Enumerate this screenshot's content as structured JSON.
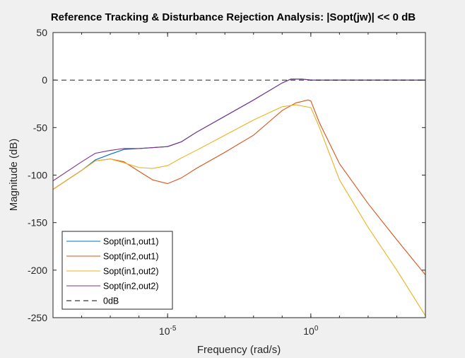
{
  "chart_data": {
    "type": "line",
    "title": "Reference Tracking & Disturbance Rejection Analysis: |Sopt(jw)| << 0 dB",
    "xlabel": "Frequency  (rad/s)",
    "ylabel": "Magnitude (dB)",
    "xscale": "log",
    "xlim": [
      1e-09,
      10000
    ],
    "ylim": [
      -250,
      50
    ],
    "yticks": [
      50,
      0,
      -50,
      -100,
      -150,
      -200,
      -250
    ],
    "yticklabels": [
      "50",
      "0",
      "-50",
      "-100",
      "-150",
      "-200",
      "-250"
    ],
    "xticks": [
      {
        "value": 1e-05,
        "base": "10",
        "exp": "-5"
      },
      {
        "value": 1,
        "base": "10",
        "exp": "0"
      }
    ],
    "grid": false,
    "legend_position": "bottom-left",
    "series": [
      {
        "name": "Sopt(in1,out1)",
        "color": "#0072bd",
        "style": "solid",
        "x": [
          1e-09,
          1e-08,
          3e-08,
          1e-07,
          3e-07,
          1e-06,
          1e-05,
          3e-05,
          0.0001,
          0.001,
          0.01,
          0.1,
          0.2,
          0.5,
          1,
          2,
          10,
          100,
          1000,
          10000
        ],
        "y": [
          -115,
          -95,
          -84,
          -78,
          -73,
          -72,
          -70,
          -65,
          -55,
          -38,
          -21,
          -3,
          1,
          1,
          0,
          0,
          0,
          0,
          0,
          0
        ]
      },
      {
        "name": "Sopt(in2,out1)",
        "color": "#d95319",
        "style": "solid",
        "x": [
          1e-09,
          1e-08,
          3e-08,
          1e-07,
          3e-07,
          1e-06,
          3e-06,
          1e-05,
          3e-05,
          0.0001,
          0.001,
          0.01,
          0.1,
          0.3,
          0.8,
          1,
          2,
          10,
          100,
          1000,
          10000
        ],
        "y": [
          -115,
          -95,
          -85,
          -83,
          -86,
          -96,
          -105,
          -109,
          -103,
          -93,
          -76,
          -58,
          -32,
          -24,
          -21,
          -22,
          -45,
          -88,
          -130,
          -168,
          -205
        ]
      },
      {
        "name": "Sopt(in1,out2)",
        "color": "#edb120",
        "style": "solid",
        "x": [
          1e-09,
          1e-08,
          3e-08,
          1e-07,
          3e-07,
          1e-06,
          3e-06,
          1e-05,
          3e-05,
          0.0001,
          0.001,
          0.01,
          0.1,
          0.3,
          1,
          2,
          10,
          100,
          1000,
          10000
        ],
        "y": [
          -115,
          -95,
          -85,
          -83,
          -87,
          -92,
          -93,
          -90,
          -82,
          -74,
          -58,
          -42,
          -28,
          -26,
          -29,
          -50,
          -105,
          -155,
          -200,
          -248
        ]
      },
      {
        "name": "Sopt(in2,out2)",
        "color": "#7e2f8e",
        "style": "solid",
        "x": [
          1e-09,
          1e-08,
          3e-08,
          1e-07,
          3e-07,
          1e-06,
          1e-05,
          3e-05,
          0.0001,
          0.001,
          0.01,
          0.1,
          0.2,
          0.5,
          1,
          2,
          10,
          100,
          1000,
          10000
        ],
        "y": [
          -106,
          -86,
          -77,
          -74,
          -72,
          -72,
          -70,
          -65,
          -55,
          -38,
          -21,
          -3,
          1,
          1,
          0,
          0,
          0,
          0,
          0,
          0
        ]
      },
      {
        "name": "0dB",
        "color": "#000000",
        "style": "dashed",
        "x": [
          1e-09,
          10000
        ],
        "y": [
          0,
          0
        ]
      }
    ]
  }
}
